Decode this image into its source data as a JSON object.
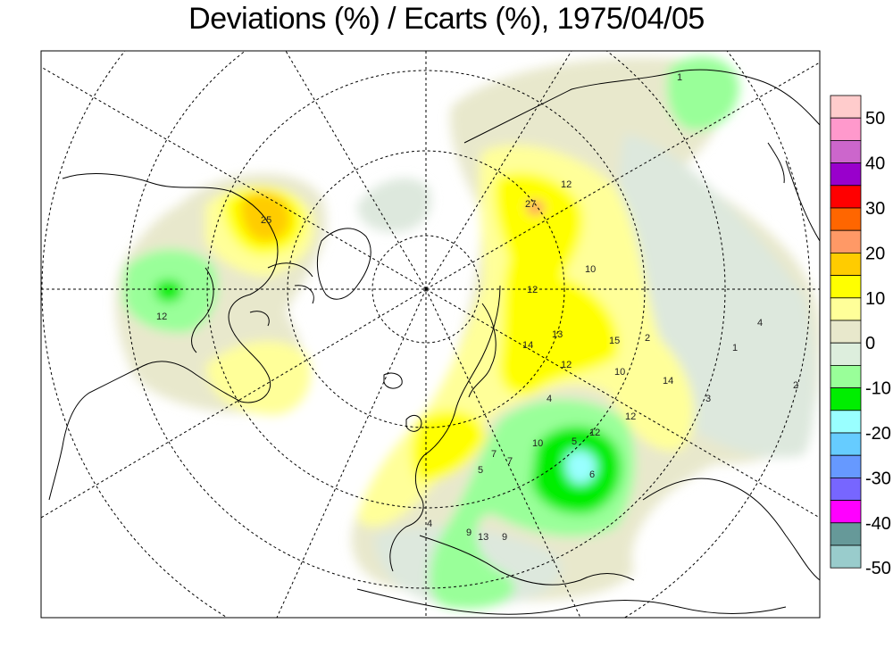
{
  "title": "Deviations (%) / Ecarts (%), 1975/04/05",
  "legend": {
    "colors": [
      "#ffcccc",
      "#ff99cc",
      "#cc66cc",
      "#9900cc",
      "#ff0000",
      "#ff6600",
      "#ff9966",
      "#ffcc00",
      "#ffff00",
      "#ffff99",
      "#e8e8cc",
      "#ddeedd",
      "#99ff99",
      "#00ee00",
      "#99ffff",
      "#66ccff",
      "#6699ff",
      "#7766ff",
      "#ff00ff",
      "#669999",
      "#99cccc"
    ],
    "ticks": [
      "50",
      "40",
      "30",
      "20",
      "10",
      "0",
      "-10",
      "-20",
      "-30",
      "-40",
      "-50"
    ]
  },
  "map_labels": [
    "25",
    "12",
    "27",
    "12",
    "10",
    "12",
    "13",
    "14",
    "15",
    "12",
    "14",
    "12",
    "10",
    "4",
    "2",
    "1",
    "3",
    "12",
    "5",
    "6",
    "7",
    "10",
    "5",
    "7",
    "13",
    "9",
    "9",
    "4",
    "2",
    "1",
    "4"
  ]
}
